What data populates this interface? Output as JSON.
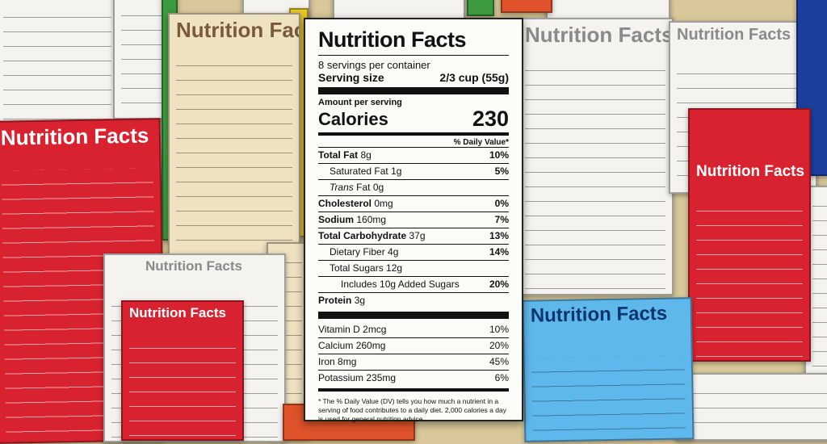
{
  "colors": {
    "red": "#d8222f",
    "cream": "#efe2c0",
    "white": "#f4f3ef",
    "sky": "#5fb8ec",
    "navy": "#1b3f9c"
  },
  "background_labels": [
    {
      "title": "Nutrition Facts",
      "variant": "red-left"
    },
    {
      "title": "Nutrition Facts",
      "variant": "cream-top"
    },
    {
      "title": "Nutrition Facts",
      "variant": "white-bottom"
    },
    {
      "title": "Nutrition Facts",
      "variant": "red-small"
    },
    {
      "title": "Nutrition Facts",
      "variant": "white-right"
    },
    {
      "title": "Nutrition Facts",
      "variant": "white-far-right"
    },
    {
      "title": "Nutrition Facts",
      "variant": "red-right"
    },
    {
      "title": "Nutrition Facts",
      "variant": "blue-bottom"
    }
  ],
  "label": {
    "title": "Nutrition Facts",
    "servings_per_container": "8 servings per container",
    "serving_size_label": "Serving size",
    "serving_size_value": "2/3 cup (55g)",
    "amount_per_serving": "Amount per serving",
    "calories_label": "Calories",
    "calories_value": "230",
    "dv_header": "% Daily Value*",
    "nutrients": [
      {
        "name": "Total Fat",
        "amount": "8g",
        "dv": "10%"
      },
      {
        "name": "Saturated Fat",
        "amount": "1g",
        "dv": "5%"
      },
      {
        "name": "Trans",
        "amount": "Fat 0g",
        "dv": ""
      },
      {
        "name": "Cholesterol",
        "amount": "0mg",
        "dv": "0%"
      },
      {
        "name": "Sodium",
        "amount": "160mg",
        "dv": "7%"
      },
      {
        "name": "Total Carbohydrate",
        "amount": "37g",
        "dv": "13%"
      },
      {
        "name": "Dietary Fiber",
        "amount": "4g",
        "dv": "14%"
      },
      {
        "name": "Total Sugars",
        "amount": "12g",
        "dv": ""
      },
      {
        "name": "Includes 10g Added Sugars",
        "amount": "",
        "dv": "20%"
      },
      {
        "name": "Protein",
        "amount": "3g",
        "dv": ""
      }
    ],
    "vitamins": [
      {
        "name": "Vitamin D",
        "amount": "2mcg",
        "dv": "10%"
      },
      {
        "name": "Calcium",
        "amount": "260mg",
        "dv": "20%"
      },
      {
        "name": "Iron",
        "amount": "8mg",
        "dv": "45%"
      },
      {
        "name": "Potassium",
        "amount": "235mg",
        "dv": "6%"
      }
    ],
    "footnote": "* The % Daily Value (DV) tells you how much a nutrient in a serving of food contributes to a daily diet. 2,000 calories a day is used for general nutrition advice."
  }
}
